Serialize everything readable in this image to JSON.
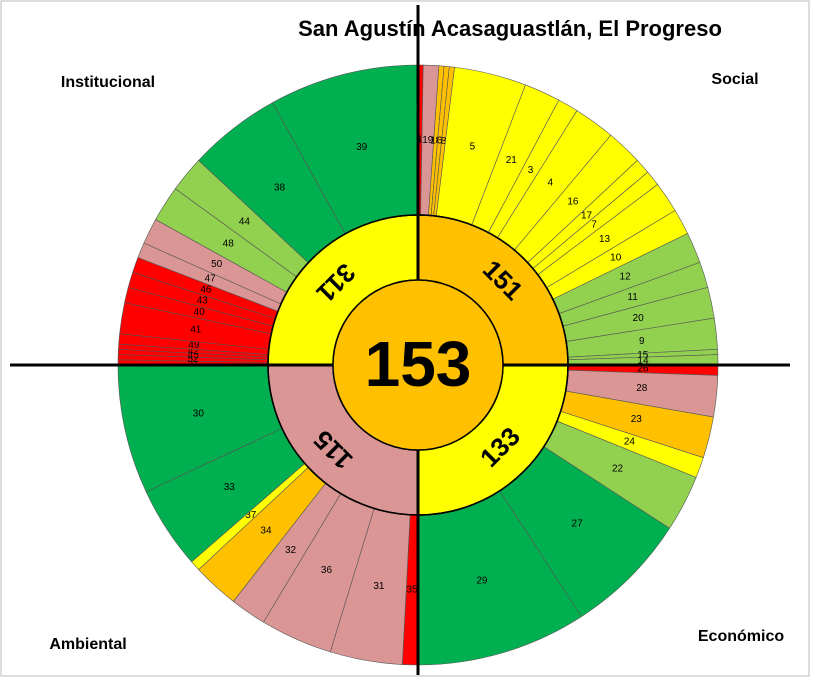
{
  "chart_data": {
    "type": "sunburst",
    "title": "San Agustín Acasaguastlán, El Progreso",
    "center": {
      "value": 153,
      "color": "#ffc000"
    },
    "groups": [
      {
        "name": "Social",
        "value": 151,
        "color": "#ffc000",
        "labels": [
          "1",
          "19",
          "18",
          "6",
          "8",
          "5",
          "21",
          "3",
          "4",
          "16",
          "17",
          "7",
          "13",
          "10",
          "12",
          "11",
          "20",
          "9",
          "15",
          "14"
        ],
        "values": [
          1,
          3,
          1,
          1,
          1,
          14,
          7,
          4,
          8,
          7,
          3,
          3,
          6,
          5,
          6,
          5,
          6,
          6,
          1,
          2
        ],
        "colors": [
          "#ff0000",
          "#da9694",
          "#ffc000",
          "#ffc000",
          "#ffc000",
          "#ffff00",
          "#ffff00",
          "#ffff00",
          "#ffff00",
          "#ffff00",
          "#ffff00",
          "#ffff00",
          "#ffff00",
          "#ffff00",
          "#92d050",
          "#92d050",
          "#92d050",
          "#92d050",
          "#92d050",
          "#92d050"
        ]
      },
      {
        "name": "Económico",
        "value": 133,
        "color": "#ffff00",
        "labels": [
          "26",
          "28",
          "23",
          "24",
          "22",
          "27",
          "29"
        ],
        "values": [
          2,
          8,
          8,
          4,
          11,
          24,
          33
        ],
        "colors": [
          "#ff0000",
          "#da9694",
          "#ffc000",
          "#ffff00",
          "#92d050",
          "#00b050",
          "#00b050"
        ]
      },
      {
        "name": "Ambiental",
        "value": 115,
        "color": "#da9694",
        "labels": [
          "35",
          "31",
          "36",
          "32",
          "34",
          "37",
          "33",
          "30"
        ],
        "values": [
          3,
          14,
          14,
          7,
          9,
          2,
          16,
          25
        ],
        "colors": [
          "#ff0000",
          "#da9694",
          "#da9694",
          "#da9694",
          "#ffc000",
          "#ffff00",
          "#00b050",
          "#00b050"
        ]
      },
      {
        "name": "Institucional",
        "value": 311,
        "color": "#ffff00",
        "labels": [
          "51",
          "52",
          "45",
          "42",
          "49",
          "41",
          "40",
          "43",
          "46",
          "47",
          "50",
          "48",
          "44",
          "38",
          "39"
        ],
        "values": [
          1,
          1,
          1,
          1,
          2,
          6,
          3,
          3,
          3,
          3,
          5,
          7,
          7,
          18,
          29
        ],
        "colors": [
          "#ff0000",
          "#ff0000",
          "#ff0000",
          "#ff0000",
          "#ff0000",
          "#ff0000",
          "#ff0000",
          "#ff0000",
          "#ff0000",
          "#da9694",
          "#da9694",
          "#92d050",
          "#92d050",
          "#00b050",
          "#00b050"
        ]
      }
    ]
  }
}
